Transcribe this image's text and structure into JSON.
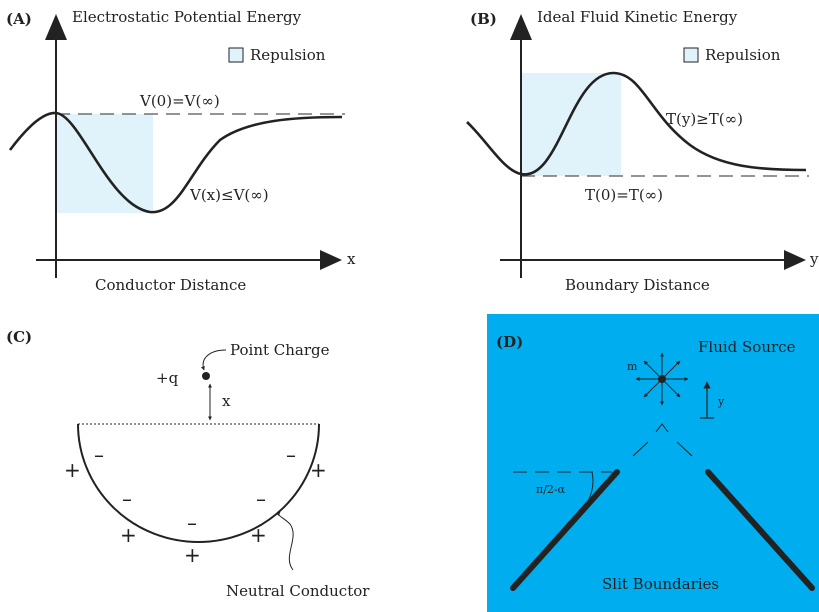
{
  "panels": {
    "a": {
      "label": "(A)",
      "title": "Electrostatic Potential Energy",
      "legend": "Repulsion",
      "ref_label": "V(0)=V(∞)",
      "curve_label": "V(x)≤V(∞)",
      "axis_var": "x",
      "xlabel": "Conductor Distance"
    },
    "b": {
      "label": "(B)",
      "title": "Ideal Fluid Kinetic Energy",
      "legend": "Repulsion",
      "ref_label": "T(0)=T(∞)",
      "curve_label": "T(y)≥T(∞)",
      "axis_var": "y",
      "xlabel": "Boundary Distance"
    },
    "c": {
      "label": "(C)",
      "charge_label": "Point Charge",
      "charge_sign": "+q",
      "distance_var": "x",
      "conductor_label": "Neutral Conductor",
      "plus": "+",
      "minus": "–"
    },
    "d": {
      "label": "(D)",
      "source_label": "Fluid Source",
      "strength_label": "m",
      "distance_var": "y",
      "angle_label": "π/2-α",
      "boundary_label": "Slit Boundaries"
    }
  },
  "colors": {
    "repulsion_fill": "#e0f3fa",
    "panel_d_background": "#00aeef",
    "ink": "#222222"
  }
}
